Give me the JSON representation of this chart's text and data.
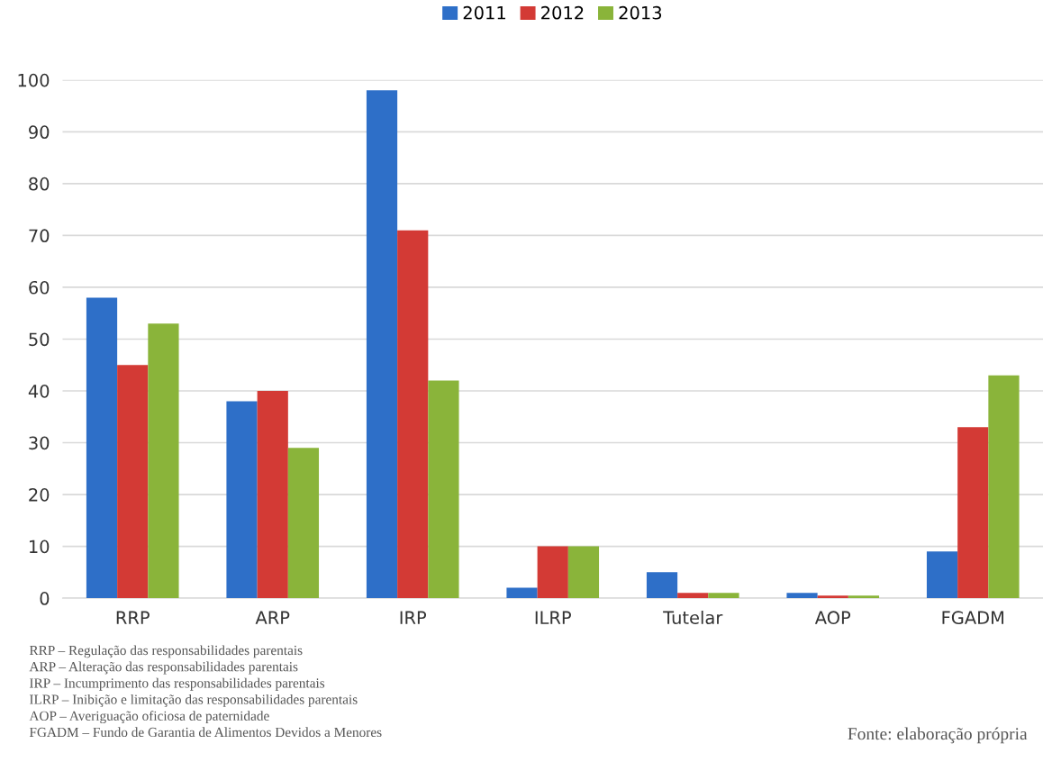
{
  "chart_data": {
    "type": "bar",
    "categories": [
      "RRP",
      "ARP",
      "IRP",
      "ILRP",
      "Tutelar",
      "AOP",
      "FGADM"
    ],
    "series": [
      {
        "name": "2011",
        "color": "#2e6fc8",
        "values": [
          58,
          38,
          98,
          2,
          5,
          1,
          9
        ]
      },
      {
        "name": "2012",
        "color": "#d33a35",
        "values": [
          45,
          40,
          71,
          10,
          1,
          0.5,
          33
        ]
      },
      {
        "name": "2013",
        "color": "#8ab43a",
        "values": [
          53,
          29,
          42,
          10,
          1,
          0.5,
          43
        ]
      }
    ],
    "ylim": [
      0,
      100
    ],
    "yticks": [
      0,
      10,
      20,
      30,
      40,
      50,
      60,
      70,
      80,
      90,
      100
    ],
    "grid": "y",
    "legend": "top",
    "annotations": [
      "RRP – Regulação das responsabilidades parentais",
      "ARP – Alteração das responsabilidades parentais",
      "IRP – Incumprimento das responsabilidades parentais",
      "ILRP – Inibição e limitação das responsabilidades parentais",
      "AOP – Averiguação oficiosa de paternidade",
      "FGADM – Fundo de Garantia de Alimentos Devidos a Menores",
      "Fonte: elaboração própria"
    ]
  }
}
